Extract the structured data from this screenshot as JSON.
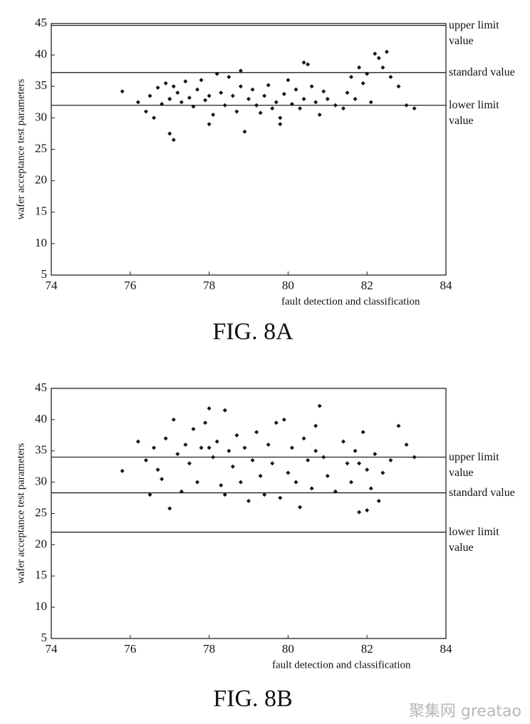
{
  "chart_data": [
    {
      "type": "scatter",
      "title": "FIG. 8A",
      "x_label": "fault detection and classification",
      "y_label": "wafer acceptance test parameters",
      "xlim": [
        74,
        84
      ],
      "ylim": [
        5,
        45
      ],
      "xticks": [
        74,
        76,
        78,
        80,
        82,
        84
      ],
      "yticks": [
        5,
        10,
        15,
        20,
        25,
        30,
        35,
        40,
        45
      ],
      "color": "#111111",
      "reference_lines": [
        {
          "value": 44.7,
          "label": "upper limit value"
        },
        {
          "value": 37.2,
          "label": "standard value"
        },
        {
          "value": 32,
          "label": "lower limit value"
        }
      ],
      "x": [
        75.8,
        76.2,
        76.4,
        76.5,
        76.6,
        76.7,
        76.8,
        76.9,
        77.0,
        77.0,
        77.1,
        77.2,
        77.3,
        77.4,
        77.5,
        77.6,
        77.7,
        77.8,
        77.9,
        78.0,
        78.1,
        78.2,
        78.3,
        78.4,
        78.5,
        78.6,
        78.7,
        78.8,
        78.9,
        79.0,
        79.1,
        79.2,
        79.3,
        79.4,
        79.5,
        79.6,
        79.7,
        79.8,
        79.9,
        80.0,
        80.1,
        80.2,
        80.3,
        80.4,
        80.5,
        80.6,
        80.7,
        80.8,
        80.9,
        81.0,
        81.2,
        81.4,
        81.5,
        81.6,
        81.7,
        81.8,
        81.9,
        82.0,
        82.1,
        82.2,
        82.3,
        82.4,
        82.5,
        82.6,
        82.8,
        83.0,
        83.2,
        77.0,
        77.1,
        78.0,
        78.8,
        79.8,
        80.4
      ],
      "values": [
        34.2,
        32.5,
        31.0,
        33.5,
        30.0,
        34.8,
        32.2,
        35.5,
        27.5,
        33.0,
        26.5,
        34.0,
        32.5,
        35.8,
        33.2,
        31.8,
        34.5,
        36.0,
        32.8,
        33.5,
        30.5,
        37.0,
        34.0,
        32.0,
        36.5,
        33.5,
        31.0,
        35.0,
        27.8,
        33.0,
        34.5,
        32.0,
        30.8,
        33.5,
        35.2,
        31.5,
        32.5,
        29.0,
        33.8,
        36.0,
        32.2,
        34.5,
        31.5,
        33.0,
        38.5,
        35.0,
        32.5,
        30.5,
        34.2,
        33.0,
        32.0,
        31.5,
        34.0,
        36.5,
        33.0,
        38.0,
        35.5,
        37.0,
        32.5,
        40.2,
        39.5,
        38.0,
        40.5,
        36.5,
        35.0,
        32.0,
        31.5,
        33.0,
        35.0,
        29.0,
        37.5,
        30.0,
        38.8
      ]
    },
    {
      "type": "scatter",
      "title": "FIG. 8B",
      "x_label": "fault detection and classification",
      "y_label": "wafer acceptance test parameters",
      "xlim": [
        74,
        84
      ],
      "ylim": [
        5,
        45
      ],
      "xticks": [
        74,
        76,
        78,
        80,
        82,
        84
      ],
      "yticks": [
        5,
        10,
        15,
        20,
        25,
        30,
        35,
        40,
        45
      ],
      "color": "#111111",
      "reference_lines": [
        {
          "value": 34,
          "label": "upper limit value"
        },
        {
          "value": 28.3,
          "label": "standard value"
        },
        {
          "value": 22,
          "label": "lower limit value"
        }
      ],
      "x": [
        75.8,
        76.2,
        76.4,
        76.5,
        76.6,
        76.7,
        76.8,
        76.9,
        77.0,
        77.1,
        77.2,
        77.3,
        77.4,
        77.5,
        77.6,
        77.7,
        77.8,
        77.9,
        78.0,
        78.1,
        78.2,
        78.3,
        78.4,
        78.5,
        78.6,
        78.7,
        78.8,
        78.9,
        79.0,
        79.1,
        79.2,
        79.3,
        79.4,
        79.5,
        79.6,
        79.7,
        79.8,
        79.9,
        80.0,
        80.1,
        80.2,
        80.3,
        80.4,
        80.5,
        80.6,
        80.7,
        80.8,
        80.9,
        81.0,
        81.2,
        81.4,
        81.5,
        81.6,
        81.7,
        81.8,
        81.9,
        82.0,
        82.1,
        82.2,
        82.3,
        82.4,
        82.6,
        82.8,
        83.0,
        83.2,
        78.0,
        78.4,
        80.7,
        81.8,
        82.0
      ],
      "values": [
        31.8,
        36.5,
        33.5,
        28.0,
        35.5,
        32.0,
        30.5,
        37.0,
        25.8,
        40.0,
        34.5,
        28.5,
        36.0,
        33.0,
        38.5,
        30.0,
        35.5,
        39.5,
        41.8,
        34.0,
        36.5,
        29.5,
        41.5,
        35.0,
        32.5,
        37.5,
        30.0,
        35.5,
        27.0,
        33.5,
        38.0,
        31.0,
        28.0,
        36.0,
        33.0,
        39.5,
        27.5,
        40.0,
        31.5,
        35.5,
        30.0,
        26.0,
        37.0,
        33.5,
        29.0,
        39.0,
        42.2,
        34.0,
        31.0,
        28.5,
        36.5,
        33.0,
        30.0,
        35.0,
        25.2,
        38.0,
        32.0,
        29.0,
        34.5,
        27.0,
        31.5,
        33.5,
        39.0,
        36.0,
        34.0,
        35.5,
        28.0,
        35.0,
        33.0,
        25.5
      ]
    }
  ],
  "watermark": "聚集网 greatao"
}
